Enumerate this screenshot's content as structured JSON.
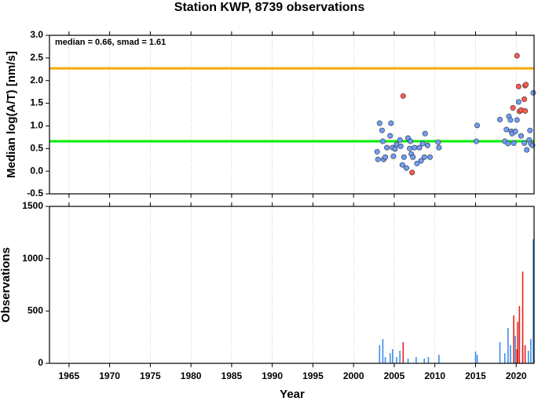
{
  "chart_data": [
    {
      "type": "scatter",
      "title": "Station KWP, 8739 observations",
      "ylabel": "Median log(A/T) [nm/s]",
      "annotation": "median = 0.66, smad = 1.61",
      "xlim": [
        1962.6,
        2022.2
      ],
      "ylim": [
        -0.5,
        3.0
      ],
      "yticks": [
        {
          "value": 3.0,
          "label": "3.0"
        },
        2.5,
        {
          "value": 2.0,
          "label": "2.0"
        },
        1.5,
        {
          "value": 1.0,
          "label": "1.0"
        },
        0.5,
        {
          "value": 0.0,
          "label": "0.0"
        },
        -0.5
      ],
      "grid": true,
      "reference_lines": [
        {
          "value": 2.27,
          "color": "#f5a800"
        },
        {
          "value": 0.66,
          "color": "#00ee00"
        }
      ],
      "series": [
        {
          "color": "#6f9cf7",
          "x": [
            2002.9,
            2003.0,
            2003.2,
            2003.5,
            2003.6,
            2003.7,
            2003.9,
            2004.1,
            2004.5,
            2004.6,
            2004.8,
            2004.9,
            2005.1,
            2005.3,
            2005.7,
            2005.8,
            2006.0,
            2006.2,
            2006.5,
            2006.7,
            2006.9,
            2007.0,
            2007.1,
            2007.3,
            2007.5,
            2007.8,
            2008.1,
            2008.3,
            2008.5,
            2008.7,
            2008.8,
            2009.1,
            2009.4,
            2010.4,
            2010.5,
            2015.1,
            2015.2,
            2018.0,
            2018.6,
            2018.8,
            2019.0,
            2019.1,
            2019.3,
            2019.4,
            2019.5,
            2019.7,
            2019.9,
            2020.1,
            2020.3,
            2020.6,
            2021.0,
            2021.3,
            2021.6,
            2021.7,
            2021.8,
            2022.0,
            2022.1
          ],
          "values": [
            0.43,
            0.26,
            1.06,
            0.9,
            0.66,
            0.26,
            0.31,
            0.52,
            0.78,
            1.06,
            0.52,
            0.33,
            0.49,
            0.59,
            0.69,
            0.55,
            0.14,
            0.31,
            0.07,
            0.73,
            0.5,
            0.66,
            0.38,
            0.31,
            0.52,
            0.17,
            0.52,
            0.23,
            0.61,
            0.31,
            0.83,
            0.57,
            0.31,
            0.64,
            0.52,
            0.66,
            1.01,
            1.14,
            0.66,
            0.92,
            0.61,
            1.21,
            1.13,
            0.88,
            0.83,
            0.62,
            0.88,
            1.13,
            1.53,
            0.78,
            0.62,
            0.47,
            0.69,
            0.9,
            0.61,
            0.57,
            1.73
          ]
        },
        {
          "color": "#ff5a4e",
          "x": [
            2006.1,
            2007.2,
            2019.6,
            2020.1,
            2020.3,
            2020.4,
            2020.6,
            2021.0,
            2021.1,
            2021.2,
            2021.1
          ],
          "values": [
            1.66,
            -0.03,
            1.4,
            2.55,
            1.87,
            1.32,
            1.35,
            1.59,
            1.89,
            1.91,
            1.33
          ]
        }
      ]
    },
    {
      "type": "bar",
      "ylabel": "Observations",
      "xlabel": "Year",
      "xlim": [
        1962.6,
        2022.2
      ],
      "xticks": [
        1965,
        1970,
        1975,
        1980,
        1985,
        1990,
        1995,
        2000,
        2005,
        2010,
        2015,
        2020
      ],
      "ylim": [
        0,
        1500
      ],
      "yticks": [
        0,
        500,
        1000,
        1500
      ],
      "grid": true,
      "series": [
        {
          "color": "#3d8ee8",
          "x": [
            2003.2,
            2003.6,
            2003.9,
            2004.5,
            2004.8,
            2005.3,
            2005.7,
            2006.7,
            2007.7,
            2008.7,
            2009.2,
            2010.5,
            2015.0,
            2015.2,
            2018.0,
            2018.6,
            2019.0,
            2019.3,
            2019.9,
            2020.8,
            2021.5,
            2021.8,
            2022.1
          ],
          "values": [
            172,
            232,
            60,
            97,
            135,
            60,
            120,
            45,
            60,
            45,
            60,
            82,
            112,
            82,
            202,
            97,
            337,
            172,
            262,
            172,
            120,
            232,
            1185
          ]
        },
        {
          "color": "#e8201a",
          "x": [
            2006.1,
            2019.7,
            2020.1,
            2020.2,
            2020.4,
            2020.8,
            2021.1
          ],
          "values": [
            202,
            457,
            135,
            397,
            547,
            877,
            172
          ]
        }
      ]
    }
  ]
}
